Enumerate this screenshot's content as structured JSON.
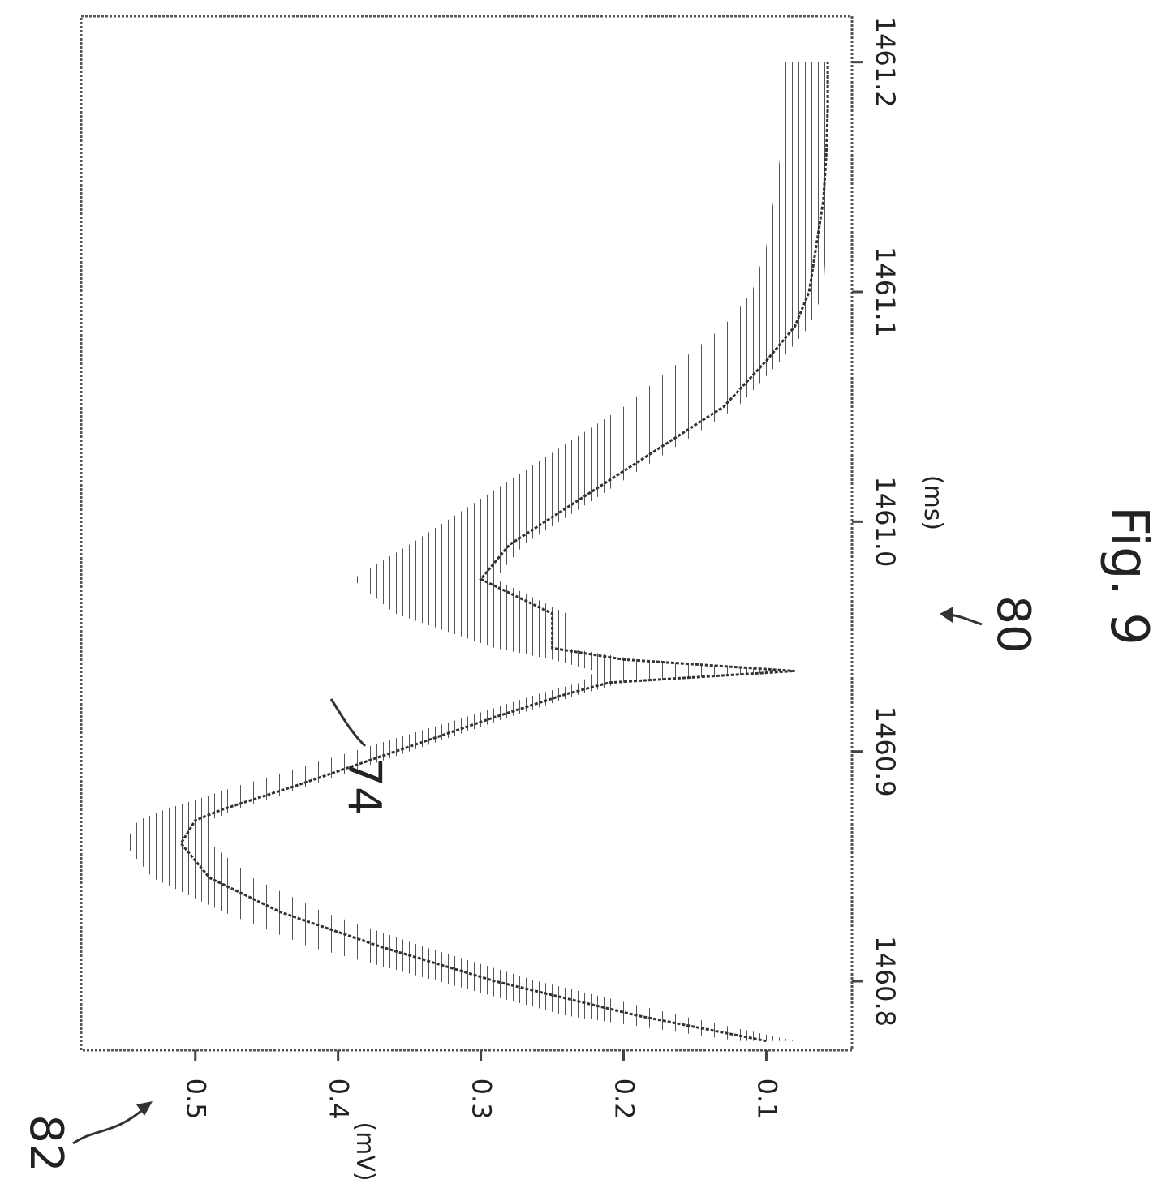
{
  "figure": {
    "caption": "Fig. 9",
    "reference_numerals": [
      "82",
      "80",
      "74"
    ]
  },
  "chart_data": {
    "type": "line",
    "title": "",
    "xlabel": "(ms)",
    "ylabel": "(mV)",
    "xlim": [
      1460.77,
      1461.22
    ],
    "ylim": [
      0.04,
      0.58
    ],
    "x_ticks": [
      1460.8,
      1460.9,
      1461.0,
      1461.1,
      1461.2
    ],
    "x_tick_labels": [
      "1460.8",
      "1460.9",
      "1461.0",
      "1461.1",
      "1461.2"
    ],
    "y_ticks": [
      0.1,
      0.2,
      0.3,
      0.4,
      0.5
    ],
    "y_tick_labels": [
      "0.1",
      "0.2",
      "0.3",
      "0.4",
      "0.5"
    ],
    "grid": false,
    "legend": "none",
    "series": [
      {
        "role": "signal",
        "x": [
          1460.774,
          1460.785,
          1460.8,
          1460.815,
          1460.83,
          1460.845,
          1460.86,
          1460.87,
          1460.875,
          1460.885,
          1460.9,
          1460.915,
          1460.925,
          1460.93,
          1460.935,
          1460.94,
          1460.945,
          1460.96,
          1460.975,
          1460.99,
          1461.01,
          1461.03,
          1461.05,
          1461.07,
          1461.085,
          1461.1,
          1461.12,
          1461.14,
          1461.16,
          1461.18,
          1461.2
        ],
        "y": [
          0.1,
          0.19,
          0.29,
          0.37,
          0.44,
          0.49,
          0.51,
          0.5,
          0.48,
          0.43,
          0.36,
          0.29,
          0.24,
          0.21,
          0.08,
          0.2,
          0.25,
          0.25,
          0.3,
          0.28,
          0.23,
          0.18,
          0.13,
          0.1,
          0.08,
          0.07,
          0.065,
          0.06,
          0.058,
          0.057,
          0.057
        ]
      },
      {
        "role": "band-upper",
        "x": [
          1460.774,
          1460.785,
          1460.8,
          1460.815,
          1460.83,
          1460.845,
          1460.86,
          1460.87,
          1460.875,
          1460.885,
          1460.9,
          1460.915,
          1460.925,
          1460.93,
          1460.935,
          1460.94,
          1460.945,
          1460.96,
          1460.975,
          1460.99,
          1461.01,
          1461.03,
          1461.05,
          1461.07,
          1461.085,
          1461.1,
          1461.12,
          1461.14,
          1461.16,
          1461.18,
          1461.2
        ],
        "y": [
          0.12,
          0.24,
          0.33,
          0.42,
          0.48,
          0.53,
          0.55,
          0.54,
          0.52,
          0.47,
          0.39,
          0.31,
          0.26,
          0.23,
          0.22,
          0.25,
          0.29,
          0.36,
          0.39,
          0.35,
          0.3,
          0.25,
          0.2,
          0.16,
          0.13,
          0.11,
          0.1,
          0.095,
          0.09,
          0.09,
          0.09
        ]
      },
      {
        "role": "band-lower",
        "x": [
          1460.774,
          1460.785,
          1460.8,
          1460.815,
          1460.83,
          1460.845,
          1460.86,
          1460.87,
          1460.875,
          1460.885,
          1460.9,
          1460.915,
          1460.925,
          1460.93,
          1460.935,
          1460.94,
          1460.945,
          1460.96,
          1460.975,
          1460.99,
          1461.01,
          1461.03,
          1461.05,
          1461.07,
          1461.085,
          1461.1,
          1461.12,
          1461.14,
          1461.16,
          1461.18,
          1461.2
        ],
        "y": [
          0.08,
          0.16,
          0.26,
          0.34,
          0.41,
          0.46,
          0.49,
          0.49,
          0.47,
          0.42,
          0.35,
          0.28,
          0.23,
          0.2,
          0.08,
          0.19,
          0.24,
          0.24,
          0.29,
          0.27,
          0.22,
          0.17,
          0.12,
          0.09,
          0.07,
          0.06,
          0.058,
          0.056,
          0.055,
          0.055,
          0.055
        ]
      }
    ]
  }
}
